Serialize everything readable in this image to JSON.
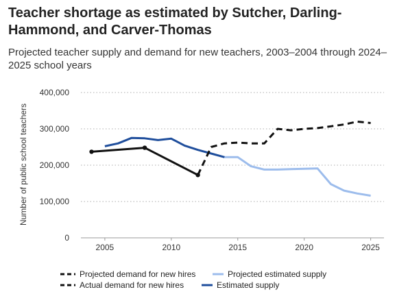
{
  "title": "Teacher shortage as estimated by Sutcher, Darling-Hammond, and Carver-Thomas",
  "subtitle": "Projected teacher supply and demand for new teachers, 2003–2004 through 2024–2025 school years",
  "chart_data": {
    "type": "line",
    "ylabel": "Number of public school teachers",
    "xlabel": "",
    "xlim": [
      2003.2,
      2026.0
    ],
    "ylim": [
      0,
      400000
    ],
    "x_ticks": [
      2005,
      2010,
      2015,
      2020,
      2025
    ],
    "x_tick_labels": [
      "2005",
      "2010",
      "2015",
      "2020",
      "2025"
    ],
    "y_ticks": [
      0,
      100000,
      200000,
      300000,
      400000
    ],
    "y_tick_labels": [
      "0",
      "100,000",
      "200,000",
      "300,000",
      "400,000"
    ],
    "grid": "horizontal dotted",
    "legend_position": "bottom",
    "series": [
      {
        "name": "Actual demand for new hires",
        "color": "#111111",
        "style": "solid",
        "markers": true,
        "points": [
          [
            2004,
            237000
          ],
          [
            2008,
            248000
          ],
          [
            2012,
            173000
          ]
        ]
      },
      {
        "name": "Projected demand for new hires",
        "color": "#111111",
        "style": "dashed",
        "markers": false,
        "points": [
          [
            2012,
            173000
          ],
          [
            2013,
            250000
          ],
          [
            2014,
            260000
          ],
          [
            2015,
            262000
          ],
          [
            2016,
            260000
          ],
          [
            2017,
            260000
          ],
          [
            2018,
            300000
          ],
          [
            2019,
            296000
          ],
          [
            2020,
            300000
          ],
          [
            2021,
            302000
          ],
          [
            2022,
            307000
          ],
          [
            2023,
            312000
          ],
          [
            2024,
            320000
          ],
          [
            2025,
            316000
          ]
        ]
      },
      {
        "name": "Estimated supply",
        "color": "#1f4e9c",
        "style": "solid",
        "markers": false,
        "points": [
          [
            2005,
            252000
          ],
          [
            2006,
            260000
          ],
          [
            2007,
            275000
          ],
          [
            2008,
            274000
          ],
          [
            2009,
            269000
          ],
          [
            2010,
            273000
          ],
          [
            2011,
            254000
          ],
          [
            2012,
            242000
          ],
          [
            2013,
            232000
          ],
          [
            2014,
            222000
          ]
        ]
      },
      {
        "name": "Projected estimated supply",
        "color": "#9cbcec",
        "style": "solid",
        "markers": false,
        "points": [
          [
            2014,
            222000
          ],
          [
            2015,
            222000
          ],
          [
            2016,
            197000
          ],
          [
            2017,
            188000
          ],
          [
            2018,
            188000
          ],
          [
            2019,
            189000
          ],
          [
            2020,
            190000
          ],
          [
            2021,
            191000
          ],
          [
            2022,
            148000
          ],
          [
            2023,
            130000
          ],
          [
            2024,
            122000
          ],
          [
            2025,
            116000
          ]
        ]
      }
    ],
    "legend": [
      {
        "label": "Projected demand for new hires",
        "series": 1
      },
      {
        "label": "Projected estimated supply",
        "series": 3
      },
      {
        "label": "Actual demand for new hires",
        "series": 0
      },
      {
        "label": "Estimated supply",
        "series": 2
      }
    ]
  }
}
